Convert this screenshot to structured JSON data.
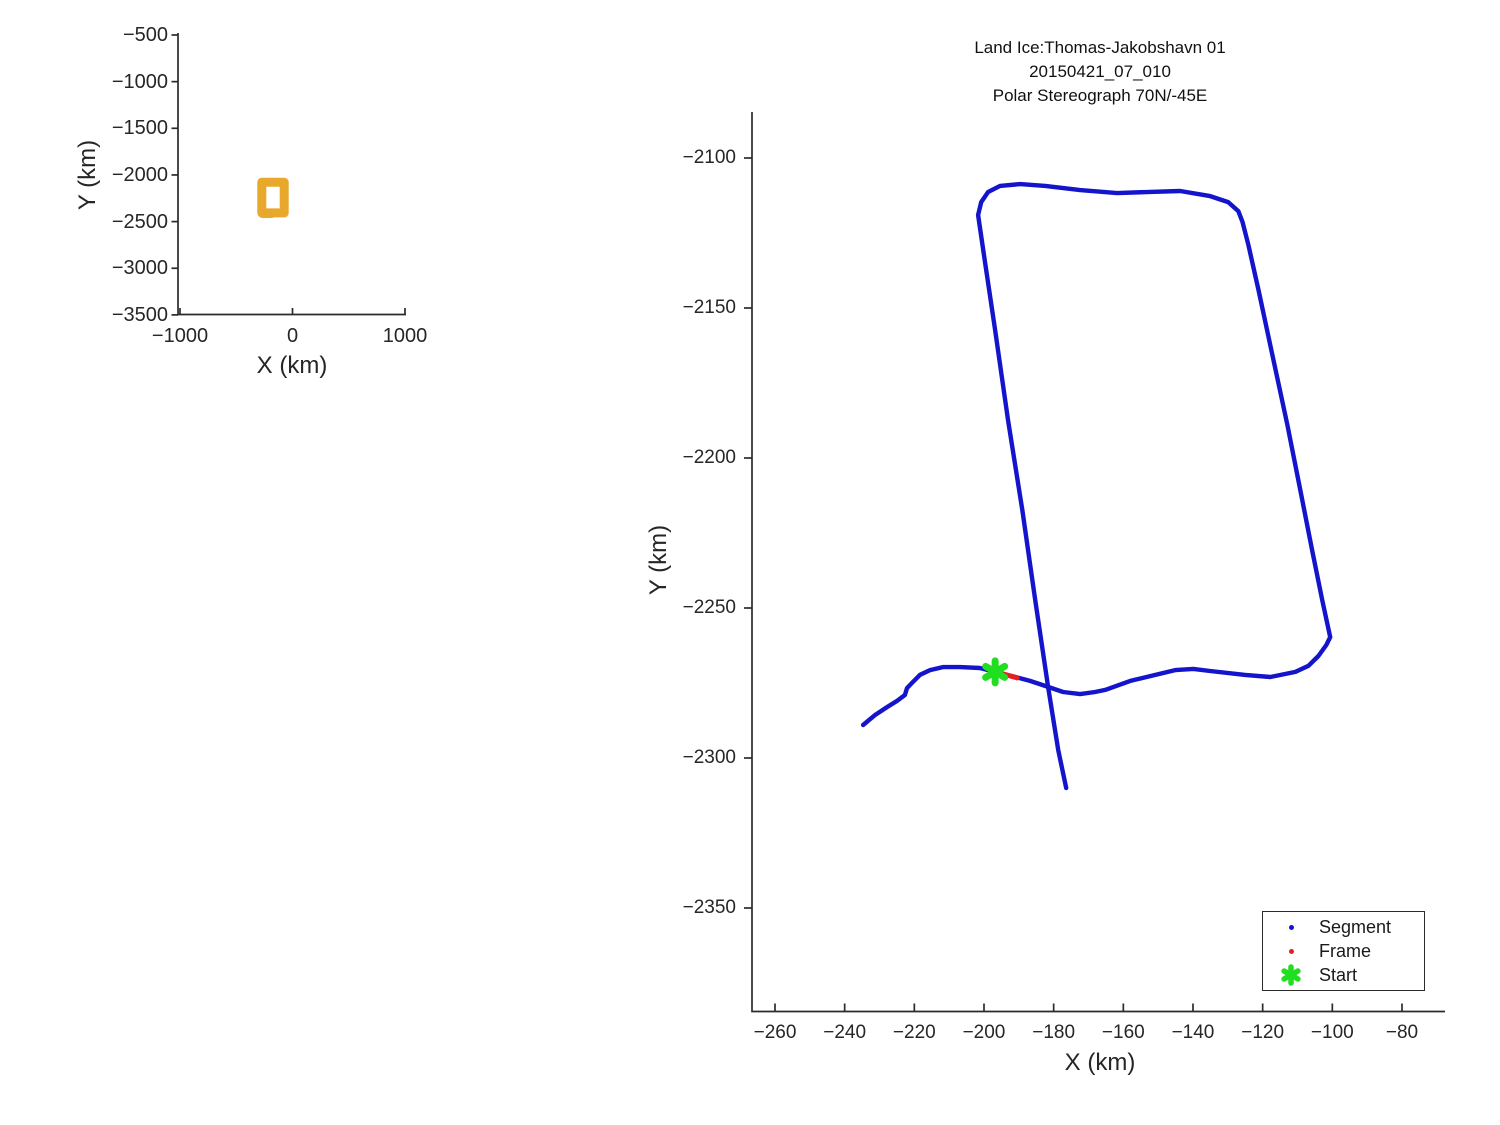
{
  "figure": {
    "title_lines": [
      "Land Ice:Thomas-Jakobshavn 01",
      "20150421_07_010",
      "Polar Stereograph 70N/-45E"
    ]
  },
  "colors": {
    "segment": "#1414cd",
    "frame": "#e51f1f",
    "start": "#21de21",
    "overview_path": "#e8a82b",
    "axis": "#2b2b2b",
    "text": "#262626"
  },
  "legend": {
    "items": [
      {
        "label": "Segment",
        "marker": "dot",
        "color_key": "segment"
      },
      {
        "label": "Frame",
        "marker": "dot",
        "color_key": "frame"
      },
      {
        "label": "Start",
        "marker": "star",
        "color_key": "start"
      }
    ]
  },
  "chart_data": [
    {
      "id": "overview",
      "type": "line",
      "title": "",
      "xlabel": "X (km)",
      "ylabel": "Y (km)",
      "xticks": [
        -1000,
        0,
        1000
      ],
      "yticks": [
        -500,
        -1000,
        -1500,
        -2000,
        -2500,
        -3000,
        -3500
      ],
      "xlim": [
        -1020,
        1010
      ],
      "ylim": [
        -3520,
        -480
      ],
      "grid": false,
      "series": [
        {
          "name": "coverage-box",
          "color": "#e8a82b",
          "width": 9,
          "points": [
            [
              -272.9,
              -2077.8
            ],
            [
              -73.8,
              -2077.8
            ],
            [
              -73.8,
              -2406.9
            ],
            [
              -272.9,
              -2406.9
            ],
            [
              -272.9,
              -2077.8
            ]
          ]
        },
        {
          "name": "coverage-tail",
          "color": "#e8a82b",
          "width": 9,
          "points": [
            [
              -266.7,
              -2413.0
            ],
            [
              -185.0,
              -2413.0
            ]
          ]
        }
      ]
    },
    {
      "id": "main",
      "type": "line",
      "title": "Land Ice:Thomas-Jakobshavn 01 / 20150421_07_010 / Polar Stereograph 70N/-45E",
      "xlabel": "X (km)",
      "ylabel": "Y (km)",
      "xticks": [
        -260,
        -240,
        -220,
        -200,
        -180,
        -160,
        -140,
        -120,
        -100,
        -80
      ],
      "yticks": [
        -2100,
        -2150,
        -2200,
        -2250,
        -2300,
        -2350
      ],
      "xlim": [
        -266.6,
        -66.5
      ],
      "ylim": [
        -2384.5,
        -2084.7
      ],
      "grid": false,
      "legend_position": "lower-right",
      "series": [
        {
          "name": "Segment",
          "color": "#1414cd",
          "width": 4.4,
          "points": [
            [
              -234.7,
              -2289.0
            ],
            [
              -231.3,
              -2285.7
            ],
            [
              -227.8,
              -2283.0
            ],
            [
              -225.0,
              -2281.0
            ],
            [
              -222.7,
              -2279.0
            ],
            [
              -222.1,
              -2276.7
            ],
            [
              -220.7,
              -2275.0
            ],
            [
              -218.4,
              -2272.3
            ],
            [
              -215.5,
              -2270.7
            ],
            [
              -211.8,
              -2269.7
            ],
            [
              -206.9,
              -2269.7
            ],
            [
              -201.2,
              -2270.0
            ],
            [
              -196.8,
              -2271.3
            ],
            [
              -191.9,
              -2272.7
            ],
            [
              -186.8,
              -2274.3
            ],
            [
              -181.6,
              -2276.3
            ],
            [
              -177.3,
              -2278.0
            ],
            [
              -172.4,
              -2278.7
            ],
            [
              -168.1,
              -2278.0
            ],
            [
              -165.2,
              -2277.3
            ],
            [
              -158.0,
              -2274.3
            ],
            [
              -152.3,
              -2272.7
            ],
            [
              -145.1,
              -2270.7
            ],
            [
              -139.9,
              -2270.3
            ],
            [
              -135.1,
              -2271.0
            ],
            [
              -125.0,
              -2272.3
            ],
            [
              -117.8,
              -2273.0
            ],
            [
              -110.6,
              -2271.3
            ],
            [
              -106.9,
              -2269.3
            ],
            [
              -104.0,
              -2266.0
            ],
            [
              -101.7,
              -2262.3
            ],
            [
              -100.6,
              -2259.7
            ],
            [
              -102.9,
              -2247.3
            ],
            [
              -105.8,
              -2230.7
            ],
            [
              -109.2,
              -2210.7
            ],
            [
              -112.9,
              -2189.0
            ],
            [
              -117.2,
              -2165.7
            ],
            [
              -121.2,
              -2144.0
            ],
            [
              -124.1,
              -2129.0
            ],
            [
              -125.8,
              -2121.3
            ],
            [
              -127.0,
              -2117.7
            ],
            [
              -129.9,
              -2114.7
            ],
            [
              -135.1,
              -2112.7
            ],
            [
              -143.7,
              -2111.0
            ],
            [
              -152.3,
              -2111.3
            ],
            [
              -161.8,
              -2111.7
            ],
            [
              -172.4,
              -2110.7
            ],
            [
              -182.4,
              -2109.3
            ],
            [
              -189.6,
              -2108.7
            ],
            [
              -195.4,
              -2109.3
            ],
            [
              -198.8,
              -2111.3
            ],
            [
              -200.8,
              -2114.7
            ],
            [
              -201.7,
              -2119.0
            ],
            [
              -199.7,
              -2134.7
            ],
            [
              -196.8,
              -2157.3
            ],
            [
              -193.1,
              -2187.3
            ],
            [
              -189.0,
              -2217.3
            ],
            [
              -185.3,
              -2247.3
            ],
            [
              -181.6,
              -2276.3
            ],
            [
              -178.7,
              -2297.3
            ],
            [
              -176.4,
              -2310.0
            ]
          ]
        },
        {
          "name": "Frame",
          "color": "#e51f1f",
          "width": 5,
          "points": [
            [
              -194.5,
              -2272.0
            ],
            [
              -190.5,
              -2273.3
            ]
          ]
        },
        {
          "name": "Start",
          "color": "#21de21",
          "marker": "star",
          "width": 7,
          "points": [
            [
              -196.8,
              -2271.3
            ]
          ]
        }
      ]
    }
  ]
}
